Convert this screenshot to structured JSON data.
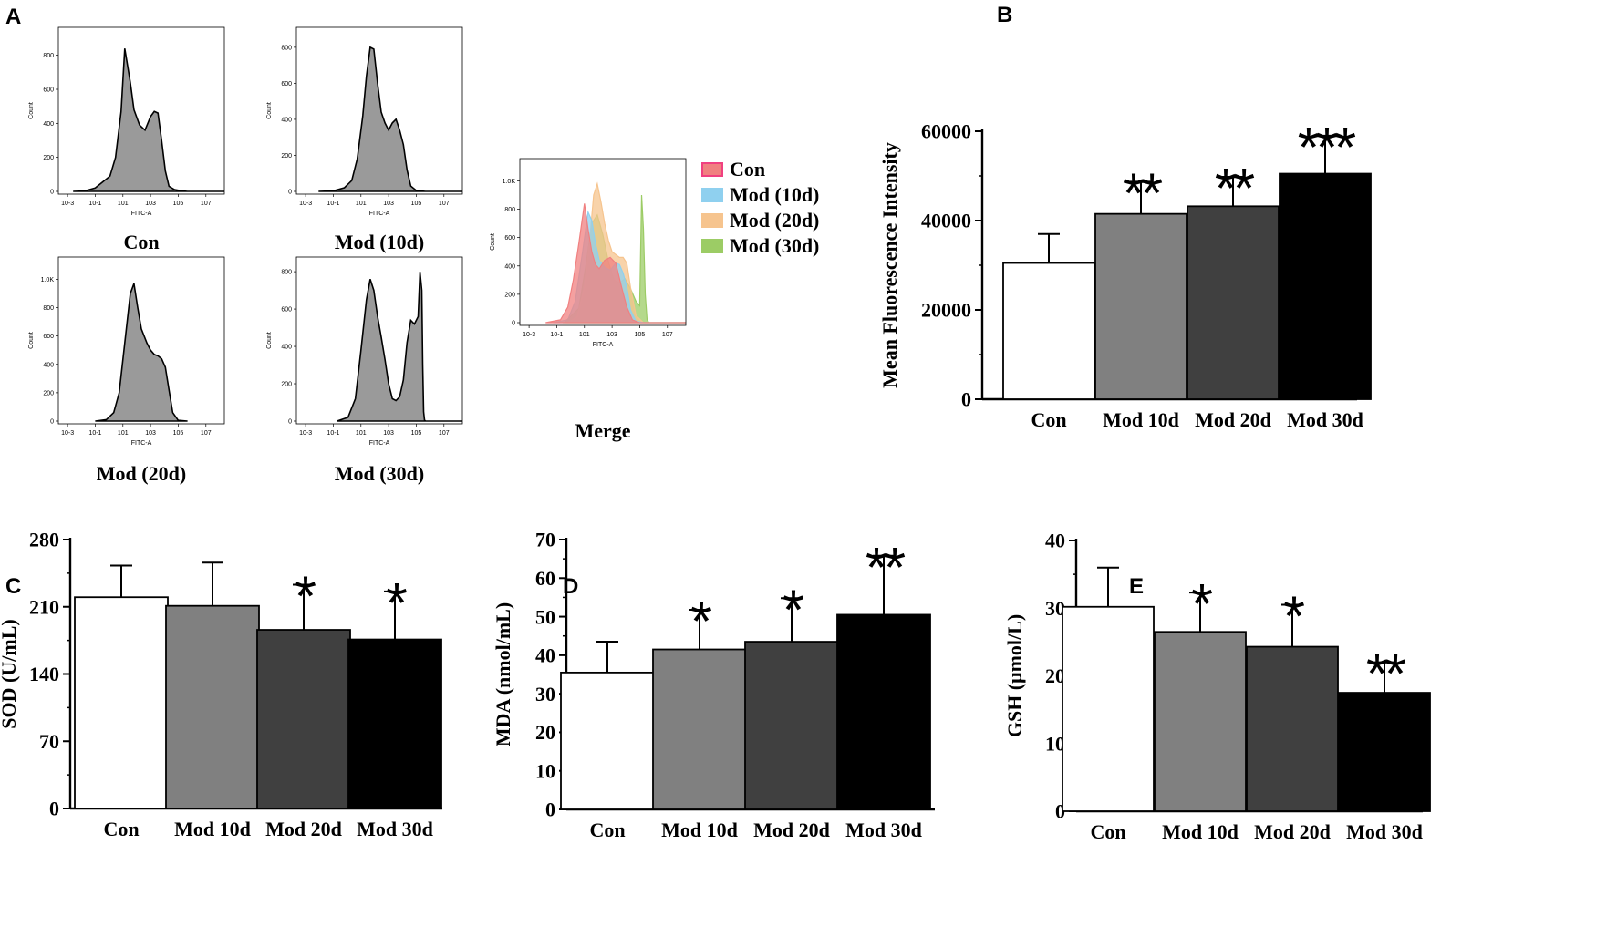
{
  "panel_letters": [
    "A",
    "B",
    "C",
    "D",
    "E"
  ],
  "colors": {
    "con": "#ffffff",
    "mod10": "#808080",
    "mod20": "#404040",
    "mod30": "#000000",
    "hist_fill": "#9a9a9a",
    "merge_con": "#f08080",
    "merge_mod10": "#8fd0ef",
    "merge_mod20": "#f6c48e",
    "merge_mod30": "#9ccc65"
  },
  "chart_data": [
    {
      "id": "A-con",
      "type": "area",
      "panel": "A",
      "title": "Con",
      "xlabel": "FITC-A",
      "ylabel": "Count",
      "xticks": [
        "10-3",
        "10-1",
        "101",
        "103",
        "105",
        "107"
      ],
      "yticks": [
        "0",
        "200",
        "400",
        "600",
        "800"
      ],
      "ylim": [
        0,
        900
      ],
      "x": [
        0.8,
        1.4,
        2.0,
        2.4,
        2.8,
        3.1,
        3.4,
        3.6,
        3.9,
        4.1,
        4.4,
        4.7,
        5.0,
        5.2,
        5.4,
        5.6,
        5.8,
        6.0,
        6.3,
        6.7,
        7.0,
        7.5,
        9.0
      ],
      "y": [
        0,
        2,
        20,
        55,
        90,
        200,
        470,
        840,
        640,
        480,
        390,
        360,
        440,
        470,
        460,
        300,
        120,
        30,
        10,
        3,
        0,
        0,
        0
      ]
    },
    {
      "id": "A-mod10",
      "type": "area",
      "panel": "A",
      "title": "Mod (10d)",
      "xlabel": "FITC-A",
      "ylabel": "Count",
      "xticks": [
        "10-3",
        "10-1",
        "101",
        "103",
        "105",
        "107"
      ],
      "yticks": [
        "0",
        "200",
        "400",
        "600",
        "800"
      ],
      "ylim": [
        0,
        850
      ],
      "x": [
        1.2,
        2.0,
        2.6,
        3.0,
        3.3,
        3.6,
        3.8,
        4.0,
        4.2,
        4.4,
        4.6,
        4.8,
        5.0,
        5.2,
        5.4,
        5.6,
        5.8,
        6.0,
        6.2,
        6.5,
        7.0,
        9.0
      ],
      "y": [
        0,
        3,
        20,
        60,
        180,
        420,
        640,
        800,
        790,
        600,
        440,
        380,
        340,
        380,
        400,
        340,
        260,
        120,
        30,
        5,
        0,
        0
      ]
    },
    {
      "id": "A-mod20",
      "type": "area",
      "panel": "A",
      "title": "Mod (20d)",
      "xlabel": "FITC-A",
      "ylabel": "Count",
      "xticks": [
        "10-3",
        "10-1",
        "101",
        "103",
        "105",
        "107"
      ],
      "yticks": [
        "0",
        "200",
        "400",
        "600",
        "800",
        "1.0K"
      ],
      "ylim": [
        0,
        1080
      ],
      "x": [
        2.0,
        2.6,
        3.0,
        3.3,
        3.6,
        3.9,
        4.1,
        4.3,
        4.5,
        4.8,
        5.0,
        5.2,
        5.4,
        5.6,
        5.8,
        6.0,
        6.2,
        6.5,
        7.0
      ],
      "y": [
        0,
        10,
        60,
        200,
        550,
        900,
        970,
        800,
        650,
        550,
        500,
        470,
        460,
        440,
        380,
        220,
        60,
        5,
        0
      ]
    },
    {
      "id": "A-mod30",
      "type": "area",
      "panel": "A",
      "title": "Mod (30d)",
      "xlabel": "FITC-A",
      "ylabel": "Count",
      "xticks": [
        "10-3",
        "10-1",
        "101",
        "103",
        "105",
        "107"
      ],
      "yticks": [
        "0",
        "200",
        "400",
        "600",
        "800"
      ],
      "ylim": [
        0,
        820
      ],
      "x": [
        2.2,
        2.8,
        3.2,
        3.5,
        3.8,
        4.0,
        4.2,
        4.4,
        4.6,
        4.8,
        5.0,
        5.2,
        5.4,
        5.6,
        5.8,
        6.0,
        6.2,
        6.4,
        6.6,
        6.7,
        6.8,
        6.85,
        6.9,
        6.95,
        7.0,
        9.0
      ],
      "y": [
        0,
        20,
        120,
        380,
        650,
        760,
        700,
        560,
        450,
        330,
        200,
        120,
        110,
        130,
        220,
        420,
        540,
        520,
        560,
        800,
        700,
        300,
        50,
        5,
        0,
        0
      ]
    },
    {
      "id": "A-merge",
      "type": "area",
      "panel": "A",
      "title": "Merge",
      "xlabel": "FITC-A",
      "ylabel": "Count",
      "xticks": [
        "10-3",
        "10-1",
        "101",
        "103",
        "105",
        "107"
      ],
      "yticks": [
        "0",
        "200",
        "400",
        "600",
        "800",
        "1.0K"
      ],
      "ylim": [
        0,
        1080
      ],
      "legend": [
        "Con",
        "Mod (10d)",
        "Mod (20d)",
        "Mod (30d)"
      ],
      "series": [
        {
          "name": "Mod (30d)",
          "color": "merge_mod30",
          "x": [
            2.4,
            3.2,
            3.6,
            3.9,
            4.2,
            4.5,
            4.8,
            5.1,
            5.4,
            5.7,
            6.0,
            6.3,
            6.5,
            6.6,
            6.7,
            6.8,
            6.9,
            7.0,
            7.6,
            9.0
          ],
          "y": [
            0,
            100,
            420,
            700,
            760,
            620,
            430,
            300,
            280,
            310,
            240,
            150,
            120,
            900,
            660,
            200,
            20,
            0,
            0,
            0
          ]
        },
        {
          "name": "Mod (20d)",
          "color": "merge_mod20",
          "x": [
            2.6,
            3.1,
            3.5,
            3.8,
            4.0,
            4.2,
            4.4,
            4.6,
            4.8,
            5.0,
            5.2,
            5.4,
            5.6,
            5.8,
            6.0,
            6.3,
            6.7,
            9.0
          ],
          "y": [
            0,
            40,
            250,
            600,
            900,
            980,
            850,
            700,
            580,
            500,
            480,
            460,
            460,
            420,
            250,
            50,
            0,
            0
          ]
        },
        {
          "name": "Mod (10d)",
          "color": "merge_mod10",
          "x": [
            1.8,
            2.6,
            3.0,
            3.4,
            3.7,
            3.9,
            4.1,
            4.3,
            4.6,
            4.9,
            5.2,
            5.4,
            5.6,
            5.8,
            6.0,
            6.3,
            6.7,
            9.0
          ],
          "y": [
            0,
            20,
            150,
            500,
            780,
            720,
            560,
            440,
            390,
            370,
            420,
            410,
            350,
            250,
            90,
            10,
            0,
            0
          ]
        },
        {
          "name": "Con",
          "color": "merge_con",
          "x": [
            1.4,
            2.2,
            2.6,
            2.9,
            3.2,
            3.5,
            3.7,
            3.9,
            4.1,
            4.3,
            4.6,
            4.9,
            5.2,
            5.5,
            5.8,
            6.1,
            6.5,
            9.0
          ],
          "y": [
            0,
            20,
            110,
            300,
            560,
            840,
            660,
            500,
            410,
            380,
            440,
            460,
            420,
            260,
            110,
            20,
            0,
            0
          ]
        }
      ]
    },
    {
      "id": "B",
      "type": "bar",
      "panel": "B",
      "ylabel": "Mean Fluorescence Intensity",
      "categories": [
        "Con",
        "Mod 10d",
        "Mod 20d",
        "Mod 30d"
      ],
      "values": [
        30500,
        41500,
        43200,
        50500
      ],
      "errors": [
        6500,
        7200,
        6600,
        8500
      ],
      "significance": [
        "",
        "**",
        "**",
        "***"
      ],
      "ylim": [
        0,
        60000
      ],
      "yticks": [
        "0",
        "20000",
        "40000",
        "60000"
      ]
    },
    {
      "id": "C",
      "type": "bar",
      "panel": "C",
      "ylabel": "SOD (U/mL)",
      "categories": [
        "Con",
        "Mod 10d",
        "Mod 20d",
        "Mod 30d"
      ],
      "values": [
        220,
        211,
        186,
        176
      ],
      "errors": [
        33,
        45,
        47,
        50
      ],
      "significance": [
        "",
        "",
        "*",
        "*"
      ],
      "ylim": [
        0,
        280
      ],
      "yticks": [
        "0",
        "70",
        "140",
        "210",
        "280"
      ]
    },
    {
      "id": "D",
      "type": "bar",
      "panel": "D",
      "ylabel": "MDA (nmol/mL)",
      "categories": [
        "Con",
        "Mod 10d",
        "Mod 20d",
        "Mod 30d"
      ],
      "values": [
        35.5,
        41.5,
        43.5,
        50.5
      ],
      "errors": [
        8.0,
        10.3,
        11.3,
        15.3
      ],
      "significance": [
        "",
        "*",
        "*",
        "**"
      ],
      "ylim": [
        0,
        70
      ],
      "yticks": [
        "0",
        "10",
        "20",
        "30",
        "40",
        "50",
        "60",
        "70"
      ]
    },
    {
      "id": "E",
      "type": "bar",
      "panel": "E",
      "ylabel": "GSH (μmol/L)",
      "categories": [
        "Con",
        "Mod 10d",
        "Mod 20d",
        "Mod 30d"
      ],
      "values": [
        30.2,
        26.5,
        24.3,
        17.5
      ],
      "errors": [
        5.8,
        5.8,
        6.2,
        4.5
      ],
      "significance": [
        "",
        "*",
        "*",
        "**"
      ],
      "ylim": [
        0,
        40
      ],
      "yticks": [
        "0",
        "10",
        "20",
        "30",
        "40"
      ]
    }
  ]
}
